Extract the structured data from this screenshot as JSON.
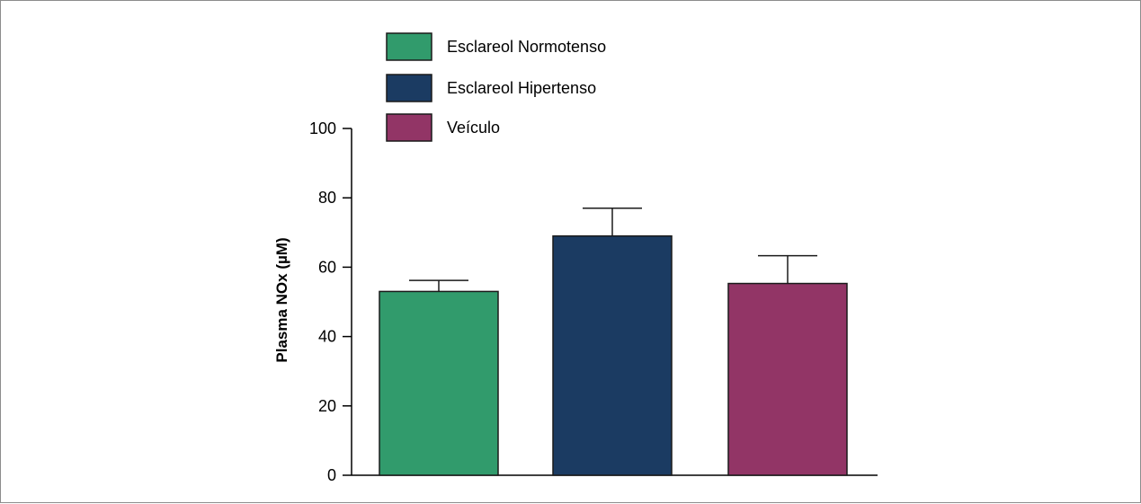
{
  "chart_data": {
    "type": "bar",
    "categories": [
      "Esclareol Normotenso",
      "Esclareol Hipertenso",
      "Veículo"
    ],
    "values": [
      53,
      69,
      55.3
    ],
    "errors": [
      3.2,
      8,
      8
    ],
    "colors": [
      "#319b6c",
      "#1b3b62",
      "#923566"
    ],
    "title": "",
    "xlabel": "",
    "ylabel": "Plasma NOx (µM)",
    "ylim": [
      0,
      100
    ],
    "yticks": [
      0,
      20,
      40,
      60,
      80,
      100
    ],
    "legend": {
      "position": "top-left",
      "entries": [
        {
          "label": "Esclareol Normotenso",
          "color": "#319b6c"
        },
        {
          "label": "Esclareol Hipertenso",
          "color": "#1b3b62"
        },
        {
          "label": "Veículo",
          "color": "#923566"
        }
      ]
    },
    "grid": false
  }
}
